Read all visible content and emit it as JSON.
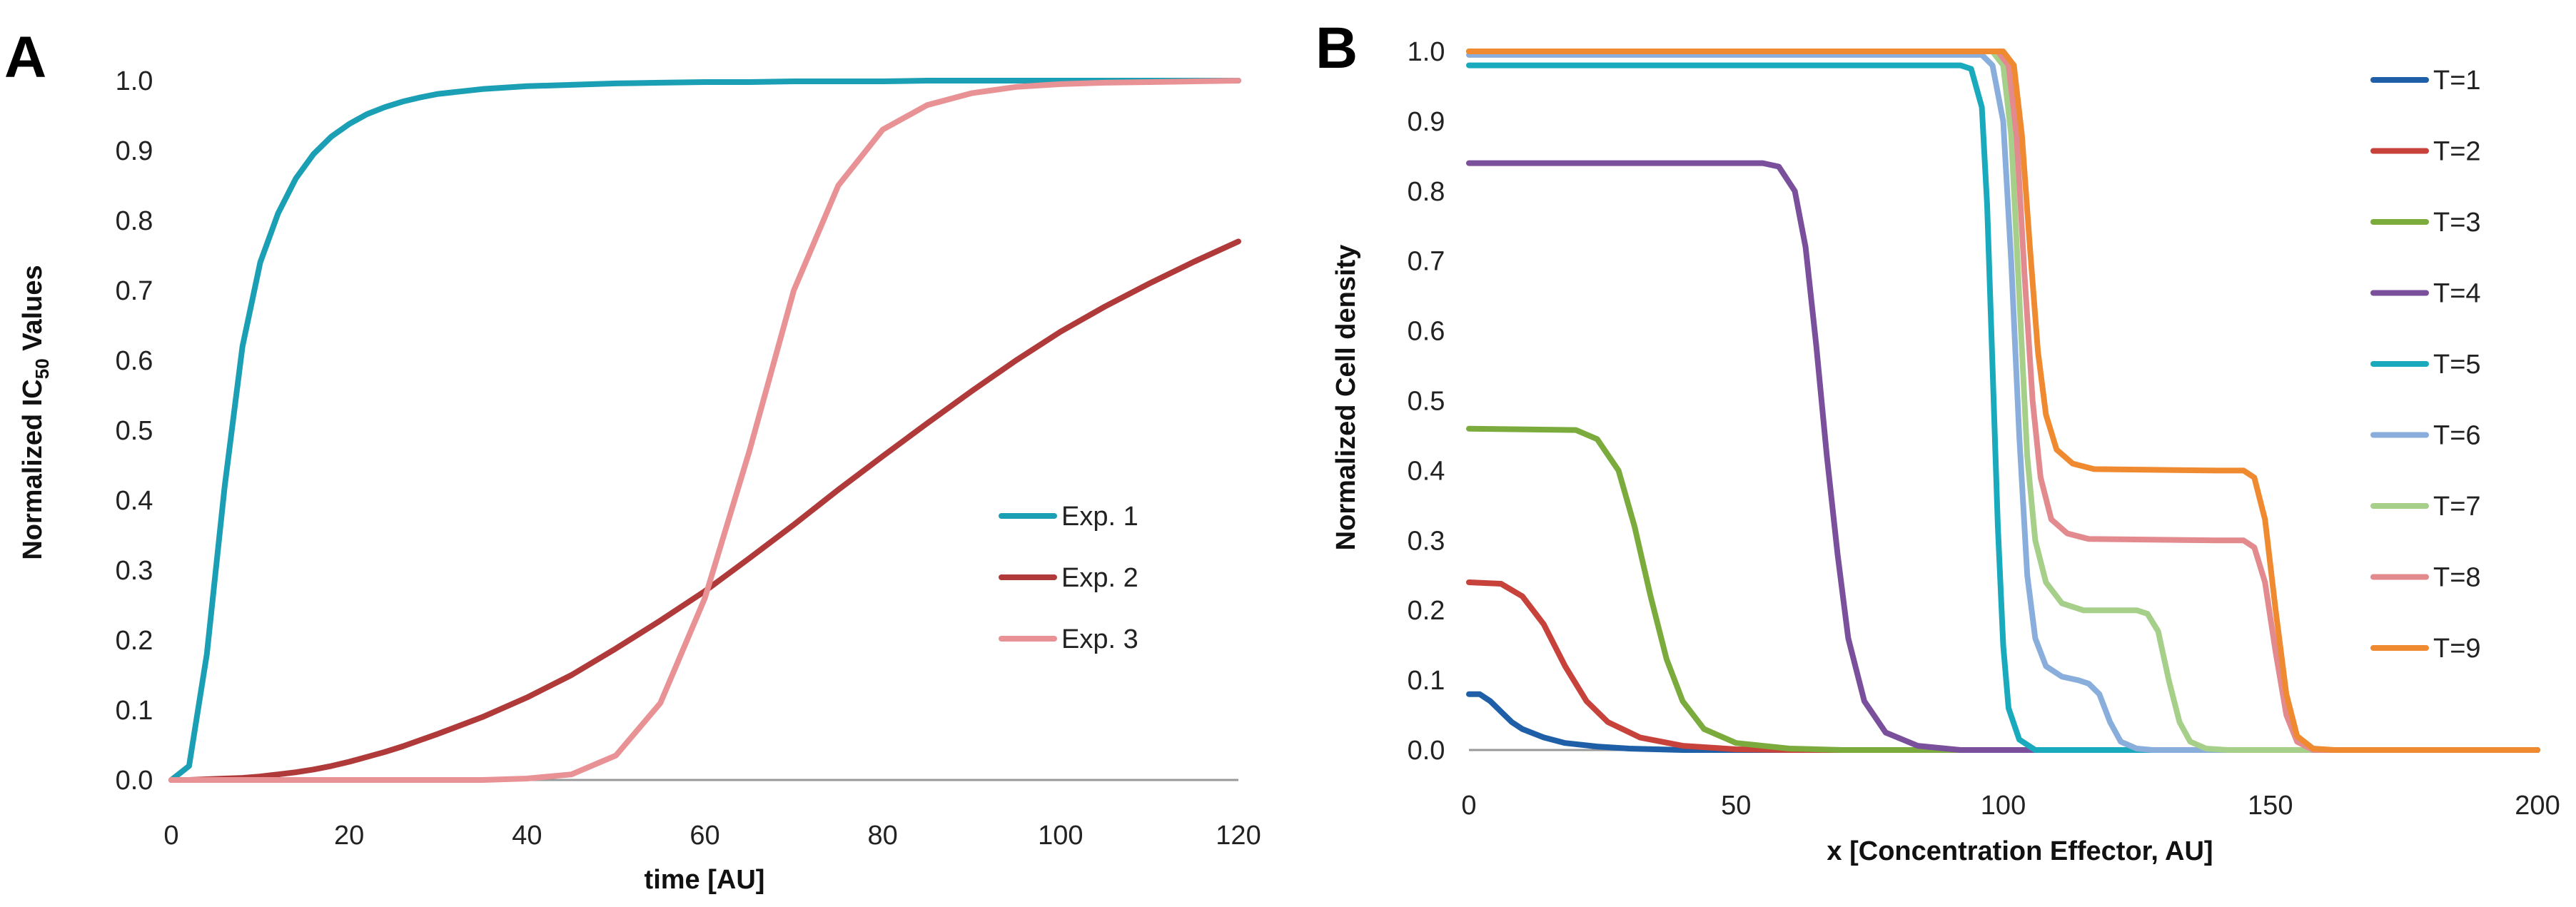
{
  "chart_data": [
    {
      "panel": "A",
      "type": "line",
      "title": "",
      "xlabel": "time [AU]",
      "ylabel_prefix": "Normalized  IC",
      "ylabel_sub": "50",
      "ylabel_suffix": " Values",
      "xlim": [
        0,
        120
      ],
      "ylim": [
        0,
        1.0
      ],
      "xticks": [
        "0",
        "20",
        "40",
        "60",
        "80",
        "100",
        "120"
      ],
      "yticks": [
        "0.0",
        "0.1",
        "0.2",
        "0.3",
        "0.4",
        "0.5",
        "0.6",
        "0.7",
        "0.8",
        "0.9",
        "1.0"
      ],
      "grid": false,
      "legend_position": "right-middle",
      "x": [
        0,
        2,
        4,
        6,
        8,
        10,
        12,
        14,
        16,
        18,
        20,
        22,
        24,
        26,
        28,
        30,
        35,
        40,
        45,
        50,
        55,
        60,
        65,
        70,
        75,
        80,
        85,
        90,
        95,
        100,
        105,
        110,
        115,
        120
      ],
      "series": [
        {
          "name": "Exp. 1",
          "color": "#1b9fb5",
          "values": [
            0.0,
            0.02,
            0.18,
            0.42,
            0.62,
            0.74,
            0.81,
            0.86,
            0.895,
            0.92,
            0.938,
            0.952,
            0.962,
            0.97,
            0.976,
            0.981,
            0.988,
            0.992,
            0.994,
            0.996,
            0.997,
            0.998,
            0.998,
            0.999,
            0.999,
            0.999,
            1.0,
            1.0,
            1.0,
            1.0,
            1.0,
            1.0,
            1.0,
            1.0
          ]
        },
        {
          "name": "Exp. 2",
          "color": "#b03a3a",
          "values": [
            0.0,
            0.0,
            0.001,
            0.002,
            0.003,
            0.005,
            0.008,
            0.011,
            0.015,
            0.02,
            0.026,
            0.033,
            0.04,
            0.048,
            0.057,
            0.066,
            0.09,
            0.118,
            0.15,
            0.188,
            0.228,
            0.27,
            0.317,
            0.365,
            0.415,
            0.463,
            0.51,
            0.556,
            0.6,
            0.641,
            0.677,
            0.71,
            0.741,
            0.77
          ]
        },
        {
          "name": "Exp. 3",
          "color": "#e99295",
          "values": [
            0.0,
            0.0,
            0.0,
            0.0,
            0.0,
            0.0,
            0.0,
            0.0,
            0.0,
            0.0,
            0.0,
            0.0,
            0.0,
            0.0,
            0.0,
            0.0,
            0.0,
            0.002,
            0.008,
            0.035,
            0.11,
            0.26,
            0.47,
            0.7,
            0.85,
            0.93,
            0.965,
            0.982,
            0.991,
            0.995,
            0.997,
            0.998,
            0.999,
            1.0
          ]
        }
      ]
    },
    {
      "panel": "B",
      "type": "line",
      "title": "",
      "xlabel": "x [Concentration Effector, AU]",
      "ylabel": "Normalized Cell density",
      "xlim": [
        0,
        200
      ],
      "ylim": [
        0,
        1.0
      ],
      "xticks": [
        "0",
        "50",
        "100",
        "150",
        "200"
      ],
      "yticks": [
        "0.0",
        "0.1",
        "0.2",
        "0.3",
        "0.4",
        "0.5",
        "0.6",
        "0.7",
        "0.8",
        "0.9",
        "1.0"
      ],
      "grid": false,
      "legend_position": "right",
      "series": [
        {
          "name": "T=1",
          "color": "#1f5fa8",
          "points": [
            [
              0,
              0.08
            ],
            [
              2,
              0.08
            ],
            [
              4,
              0.07
            ],
            [
              6,
              0.055
            ],
            [
              8,
              0.04
            ],
            [
              10,
              0.03
            ],
            [
              14,
              0.018
            ],
            [
              18,
              0.01
            ],
            [
              24,
              0.005
            ],
            [
              30,
              0.002
            ],
            [
              40,
              0.0
            ],
            [
              200,
              0.0
            ]
          ]
        },
        {
          "name": "T=2",
          "color": "#c8423c",
          "points": [
            [
              0,
              0.24
            ],
            [
              6,
              0.238
            ],
            [
              10,
              0.22
            ],
            [
              14,
              0.18
            ],
            [
              18,
              0.12
            ],
            [
              22,
              0.07
            ],
            [
              26,
              0.04
            ],
            [
              32,
              0.018
            ],
            [
              40,
              0.006
            ],
            [
              50,
              0.001
            ],
            [
              60,
              0.0
            ],
            [
              200,
              0.0
            ]
          ]
        },
        {
          "name": "T=3",
          "color": "#7aab3c",
          "points": [
            [
              0,
              0.46
            ],
            [
              20,
              0.458
            ],
            [
              24,
              0.445
            ],
            [
              28,
              0.4
            ],
            [
              31,
              0.32
            ],
            [
              34,
              0.22
            ],
            [
              37,
              0.13
            ],
            [
              40,
              0.07
            ],
            [
              44,
              0.03
            ],
            [
              50,
              0.01
            ],
            [
              60,
              0.002
            ],
            [
              70,
              0.0
            ],
            [
              200,
              0.0
            ]
          ]
        },
        {
          "name": "T=4",
          "color": "#7a4f9b",
          "points": [
            [
              0,
              0.84
            ],
            [
              55,
              0.84
            ],
            [
              58,
              0.835
            ],
            [
              61,
              0.8
            ],
            [
              63,
              0.72
            ],
            [
              65,
              0.58
            ],
            [
              67,
              0.42
            ],
            [
              69,
              0.28
            ],
            [
              71,
              0.16
            ],
            [
              74,
              0.07
            ],
            [
              78,
              0.025
            ],
            [
              84,
              0.006
            ],
            [
              92,
              0.0
            ],
            [
              200,
              0.0
            ]
          ]
        },
        {
          "name": "T=5",
          "color": "#1aaabd",
          "points": [
            [
              0,
              0.98
            ],
            [
              92,
              0.98
            ],
            [
              94,
              0.975
            ],
            [
              96,
              0.92
            ],
            [
              97,
              0.78
            ],
            [
              98,
              0.55
            ],
            [
              99,
              0.32
            ],
            [
              100,
              0.15
            ],
            [
              101,
              0.06
            ],
            [
              103,
              0.015
            ],
            [
              106,
              0.0
            ],
            [
              200,
              0.0
            ]
          ]
        },
        {
          "name": "T=6",
          "color": "#8aaedb",
          "points": [
            [
              0,
              0.995
            ],
            [
              96,
              0.995
            ],
            [
              98,
              0.98
            ],
            [
              100,
              0.9
            ],
            [
              101.5,
              0.7
            ],
            [
              103,
              0.45
            ],
            [
              104.5,
              0.25
            ],
            [
              106,
              0.16
            ],
            [
              108,
              0.12
            ],
            [
              111,
              0.105
            ],
            [
              114,
              0.1
            ],
            [
              116,
              0.095
            ],
            [
              118,
              0.08
            ],
            [
              120,
              0.04
            ],
            [
              122,
              0.012
            ],
            [
              125,
              0.002
            ],
            [
              128,
              0.0
            ],
            [
              200,
              0.0
            ]
          ]
        },
        {
          "name": "T=7",
          "color": "#a6d08a",
          "points": [
            [
              0,
              1.0
            ],
            [
              98,
              1.0
            ],
            [
              100,
              0.98
            ],
            [
              101.5,
              0.88
            ],
            [
              103,
              0.65
            ],
            [
              104.5,
              0.42
            ],
            [
              106,
              0.3
            ],
            [
              108,
              0.24
            ],
            [
              111,
              0.21
            ],
            [
              115,
              0.2
            ],
            [
              125,
              0.2
            ],
            [
              127,
              0.195
            ],
            [
              129,
              0.17
            ],
            [
              131,
              0.1
            ],
            [
              133,
              0.04
            ],
            [
              135,
              0.012
            ],
            [
              138,
              0.002
            ],
            [
              142,
              0.0
            ],
            [
              200,
              0.0
            ]
          ]
        },
        {
          "name": "T=8",
          "color": "#e38a8e",
          "points": [
            [
              0,
              1.0
            ],
            [
              99,
              1.0
            ],
            [
              101,
              0.98
            ],
            [
              102.5,
              0.88
            ],
            [
              104,
              0.68
            ],
            [
              105.5,
              0.5
            ],
            [
              107,
              0.39
            ],
            [
              109,
              0.33
            ],
            [
              112,
              0.31
            ],
            [
              116,
              0.302
            ],
            [
              140,
              0.3
            ],
            [
              145,
              0.3
            ],
            [
              147,
              0.29
            ],
            [
              149,
              0.24
            ],
            [
              151,
              0.14
            ],
            [
              153,
              0.05
            ],
            [
              155,
              0.012
            ],
            [
              158,
              0.0
            ],
            [
              200,
              0.0
            ]
          ]
        },
        {
          "name": "T=9",
          "color": "#f08a30",
          "points": [
            [
              0,
              1.0
            ],
            [
              100,
              1.0
            ],
            [
              102,
              0.98
            ],
            [
              103.5,
              0.88
            ],
            [
              105,
              0.72
            ],
            [
              106.5,
              0.57
            ],
            [
              108,
              0.48
            ],
            [
              110,
              0.43
            ],
            [
              113,
              0.41
            ],
            [
              117,
              0.402
            ],
            [
              140,
              0.4
            ],
            [
              145,
              0.4
            ],
            [
              147,
              0.39
            ],
            [
              149,
              0.33
            ],
            [
              151,
              0.2
            ],
            [
              153,
              0.08
            ],
            [
              155,
              0.02
            ],
            [
              158,
              0.002
            ],
            [
              162,
              0.0
            ],
            [
              200,
              0.0
            ]
          ]
        }
      ]
    }
  ]
}
